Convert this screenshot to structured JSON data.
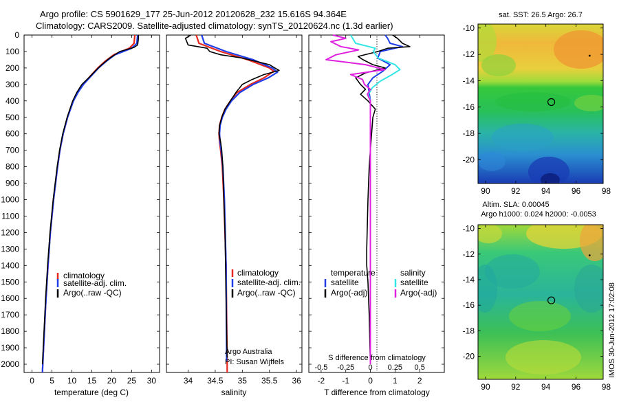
{
  "header": {
    "title_line1": "Argo profile: CS 5901629_177 25-Jun-2012 20120628_232 15.616S 94.364E",
    "title_line2": "Climatology: CARS2009. Satellite-adjusted climatology: synTS_20120624.nc (1.3d earlier)"
  },
  "colors": {
    "climatology": "#e8281e",
    "satellite": "#1f3ee8",
    "argo": "#000000",
    "sal_sat": "#33e6e6",
    "sal_argo": "#e020e0"
  },
  "depth_axis": {
    "min": 0,
    "max": 2050,
    "ticks": [
      "0",
      "100",
      "200",
      "300",
      "400",
      "500",
      "600",
      "700",
      "800",
      "900",
      "1000",
      "1100",
      "1200",
      "1300",
      "1400",
      "1500",
      "1600",
      "1700",
      "1800",
      "1900",
      "2000"
    ]
  },
  "chart_data": [
    {
      "type": "line",
      "name": "temperature_profile",
      "xlabel": "temperature (deg C)",
      "xlim": [
        -2,
        32
      ],
      "xticks": [
        "0",
        "5",
        "10",
        "15",
        "20",
        "25",
        "30"
      ],
      "ylabel": "depth",
      "ylim": [
        2050,
        0
      ],
      "legend": [
        "climatology",
        "satellite-adj. clim.",
        "Argo(..raw -QC)"
      ],
      "series": [
        {
          "name": "climatology",
          "depth": [
            0,
            50,
            80,
            120,
            160,
            200,
            250,
            300,
            350,
            400,
            500,
            600,
            700,
            800,
            1000,
            1200,
            1400,
            1600,
            1800,
            2000,
            2050
          ],
          "values": [
            25.8,
            25.6,
            24.4,
            20.5,
            18.3,
            16.5,
            14.6,
            12.8,
            11.4,
            10.3,
            8.9,
            7.8,
            7.0,
            6.4,
            5.4,
            4.6,
            4.0,
            3.5,
            3.1,
            2.7,
            2.6
          ]
        },
        {
          "name": "satellite-adj. clim.",
          "depth": [
            0,
            50,
            80,
            120,
            160,
            200,
            250,
            300,
            350,
            400,
            500,
            600,
            700,
            800,
            1000,
            1200,
            1400,
            1600,
            1800,
            2000,
            2050
          ],
          "values": [
            26.5,
            26.3,
            25.0,
            20.8,
            18.6,
            16.7,
            14.8,
            12.9,
            11.5,
            10.4,
            8.9,
            7.8,
            7.0,
            6.4,
            5.4,
            4.6,
            4.0,
            3.5,
            3.1,
            2.7,
            2.6
          ]
        },
        {
          "name": "Argo(..raw -QC)",
          "depth": [
            0,
            20,
            60,
            75,
            100,
            140,
            180,
            220,
            260,
            300,
            350,
            400,
            500,
            600,
            700,
            800,
            1000,
            1200,
            1400,
            1600,
            1800,
            2000
          ],
          "values": [
            26.7,
            26.7,
            26.5,
            25.6,
            22.0,
            19.5,
            17.5,
            15.8,
            14.2,
            12.5,
            11.2,
            10.2,
            8.8,
            7.7,
            6.9,
            6.3,
            5.3,
            4.5,
            3.9,
            3.4,
            3.0,
            2.6
          ]
        }
      ]
    },
    {
      "type": "line",
      "name": "salinity_profile",
      "xlabel": "salinity",
      "xlim": [
        33.6,
        36.1
      ],
      "xticks": [
        "34",
        "34.5",
        "35",
        "35.5",
        "36"
      ],
      "ylim": [
        2050,
        0
      ],
      "legend": [
        "climatology",
        "satellite-adj. clim.",
        "Argo(..raw -QC)"
      ],
      "annotation": [
        "Argo Australia",
        "PI: Susan Wijffels"
      ],
      "series": [
        {
          "name": "climatology",
          "depth": [
            0,
            50,
            100,
            150,
            200,
            220,
            260,
            300,
            350,
            400,
            450,
            500,
            550,
            600,
            650,
            700,
            800,
            1000,
            1400,
            2000,
            2050
          ],
          "values": [
            34.15,
            34.2,
            34.6,
            35.1,
            35.5,
            35.58,
            35.4,
            35.15,
            34.9,
            34.78,
            34.68,
            34.62,
            34.58,
            34.57,
            34.58,
            34.6,
            34.63,
            34.66,
            34.7,
            34.72,
            34.72
          ]
        },
        {
          "name": "satellite-adj. clim.",
          "depth": [
            0,
            50,
            100,
            150,
            200,
            225,
            260,
            300,
            350,
            400,
            450,
            500,
            550,
            600,
            650,
            700,
            800,
            1000,
            1400,
            1980
          ],
          "values": [
            34.25,
            34.3,
            34.7,
            35.2,
            35.55,
            35.65,
            35.48,
            35.2,
            34.95,
            34.8,
            34.7,
            34.63,
            34.59,
            34.58,
            34.59,
            34.61,
            34.64,
            34.67,
            34.7,
            34.71
          ]
        },
        {
          "name": "Argo(..raw -QC)",
          "depth": [
            0,
            20,
            60,
            80,
            100,
            120,
            140,
            160,
            180,
            200,
            215,
            240,
            270,
            300,
            350,
            400,
            450,
            500,
            550,
            600,
            650,
            700,
            800,
            1000,
            1200,
            1400,
            1600,
            1800,
            1960
          ],
          "values": [
            34.05,
            33.95,
            34.0,
            34.35,
            34.4,
            34.6,
            35.0,
            35.25,
            35.5,
            35.6,
            35.68,
            35.4,
            35.18,
            35.0,
            34.88,
            34.78,
            34.68,
            34.62,
            34.58,
            34.57,
            34.6,
            34.62,
            34.64,
            34.66,
            34.68,
            34.69,
            34.7,
            34.71,
            34.72
          ]
        }
      ]
    },
    {
      "type": "line",
      "name": "difference_profile",
      "xlabel": "T difference from climatology",
      "xlim": [
        -2.5,
        3
      ],
      "xticks": [
        "-2",
        "-1",
        "0",
        "1",
        "2"
      ],
      "top_label": "S difference from climatology",
      "top_ticks": [
        "-0.5",
        "-0.25",
        "0",
        "0.25",
        "0.5"
      ],
      "ylim": [
        2050,
        0
      ],
      "legend_left_title": "temperature",
      "legend_left": [
        "satellite",
        "Argo(-adj)"
      ],
      "legend_right_title": "salinity",
      "legend_right": [
        "satellite",
        "Argo(-adj)"
      ],
      "series": [
        {
          "name": "T satellite",
          "depth": [
            0,
            20,
            50,
            70,
            100,
            140,
            180,
            220,
            260,
            300,
            350,
            400,
            450,
            500,
            600,
            700,
            800,
            1000,
            1400,
            1800,
            2000
          ],
          "values": [
            0.6,
            0.7,
            0.8,
            1.3,
            0.4,
            0.3,
            0.8,
            0.5,
            0.1,
            -0.1,
            -0.05,
            0,
            0,
            0,
            0,
            0,
            0,
            0,
            0,
            0,
            0
          ]
        },
        {
          "name": "T Argo(-adj)",
          "depth": [
            0,
            20,
            50,
            70,
            80,
            100,
            130,
            150,
            180,
            200,
            230,
            260,
            300,
            330,
            360,
            400,
            450,
            500,
            600,
            700,
            800,
            1000,
            1300,
            1400,
            1500,
            1700,
            2000
          ],
          "values": [
            0.9,
            1.1,
            1.3,
            1.6,
            0.7,
            0.3,
            -0.5,
            -0.3,
            0.1,
            0.6,
            -0.2,
            -0.6,
            -0.4,
            -0.2,
            -0.4,
            -0.1,
            0.2,
            0.1,
            0.05,
            0,
            -0.05,
            -0.1,
            -0.15,
            -0.15,
            -0.1,
            -0.05,
            0
          ]
        },
        {
          "name": "S satellite",
          "depth": [
            0,
            20,
            50,
            80,
            100,
            140,
            180,
            210,
            240,
            280,
            320,
            360,
            400,
            450,
            500,
            600,
            800,
            1000,
            1400,
            2000
          ],
          "values": [
            -0.2,
            -0.18,
            -0.15,
            0.05,
            0.03,
            0.08,
            0.25,
            0.3,
            0.22,
            0.1,
            0.02,
            -0.02,
            0,
            0,
            0,
            0,
            0,
            0,
            0,
            0
          ]
        },
        {
          "name": "S Argo(-adj)",
          "depth": [
            0,
            20,
            40,
            70,
            90,
            120,
            150,
            180,
            210,
            240,
            270,
            300,
            330,
            360,
            400,
            450,
            500,
            600,
            700,
            800,
            1000,
            1400,
            2000
          ],
          "values": [
            -0.38,
            -0.25,
            -0.4,
            -0.3,
            -0.12,
            -0.35,
            -0.45,
            -0.05,
            0.15,
            -0.2,
            -0.08,
            -0.06,
            0.0,
            -0.03,
            0,
            0,
            0,
            0,
            0,
            0,
            0,
            0,
            0
          ]
        }
      ]
    },
    {
      "type": "heatmap",
      "name": "sst_map",
      "title": "sat. SST: 26.5 Argo: 26.7",
      "xticks": [
        "90",
        "92",
        "94",
        "96",
        "98"
      ],
      "yticks": [
        "-10",
        "-12",
        "-14",
        "-16",
        "-18",
        "-20"
      ],
      "xlim": [
        89.5,
        97.8
      ],
      "ylim": [
        -21.8,
        -9.7
      ],
      "argo_position": {
        "lon": 94.36,
        "lat": -15.62
      },
      "track_point": {
        "lon": 96.9,
        "lat": -12.1
      }
    },
    {
      "type": "heatmap",
      "name": "sla_map",
      "title": "Altim. SLA: 0.00045",
      "subtitle": "Argo h1000: 0.024 h2000: -0.0053",
      "xticks": [
        "90",
        "92",
        "94",
        "96",
        "98"
      ],
      "yticks": [
        "-10",
        "-12",
        "-14",
        "-16",
        "-18",
        "-20"
      ],
      "xlim": [
        89.5,
        97.8
      ],
      "ylim": [
        -21.8,
        -9.7
      ],
      "argo_position": {
        "lon": 94.36,
        "lat": -15.62
      },
      "track_point": {
        "lon": 96.9,
        "lat": -12.1
      }
    }
  ],
  "footer": {
    "stamp": "IMOS 30-Jun-2012 17:02:08"
  }
}
